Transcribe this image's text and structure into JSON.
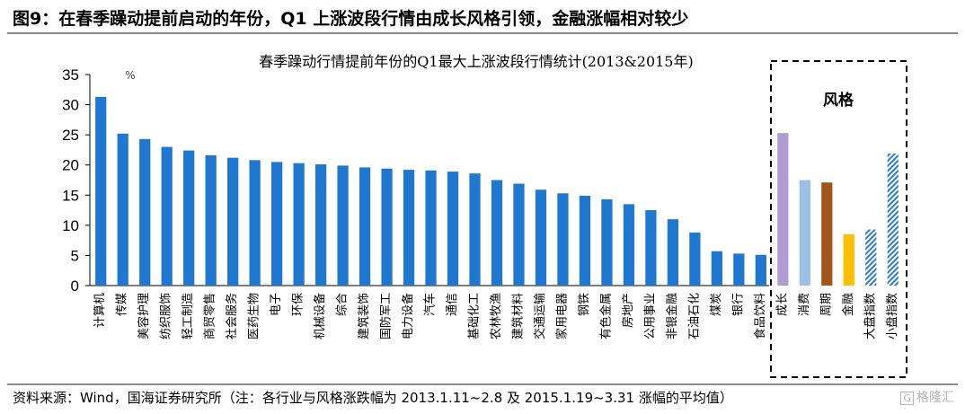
{
  "figure": {
    "title": "图9：在春季躁动提前启动的年份，Q1 上涨波段行情由成长风格引领，金融涨幅相对较少",
    "source": "资料来源：Wind，国海证券研究所（注：各行业与风格涨跌幅为 2013.1.11~2.8 及 2015.1.19~3.31 涨幅的平均值）",
    "watermark": "格隆汇",
    "watermark_icon": "gelonghui-logo-icon"
  },
  "chart_data": {
    "type": "bar",
    "title": "春季躁动行情提前年份的Q1最大上涨波段行情统计(2013&2015年)",
    "y_unit_label": "%",
    "ylim": [
      0,
      35
    ],
    "yticks": [
      0,
      5,
      10,
      15,
      20,
      25,
      30,
      35
    ],
    "grid": false,
    "categories": [
      "计算机",
      "传媒",
      "美容护理",
      "纺织服饰",
      "轻工制造",
      "商贸零售",
      "社会服务",
      "医药生物",
      "电子",
      "环保",
      "机械设备",
      "综合",
      "建筑装饰",
      "国防军工",
      "电力设备",
      "汽车",
      "通信",
      "基础化工",
      "农林牧渔",
      "建筑材料",
      "交通运输",
      "家用电器",
      "钢铁",
      "有色金属",
      "房地产",
      "公用事业",
      "非银金融",
      "石油石化",
      "煤炭",
      "银行",
      "食品饮料",
      "成长",
      "消费",
      "周期",
      "金融",
      "大盘指数",
      "小盘指数"
    ],
    "values": [
      31.3,
      25.2,
      24.3,
      23.0,
      22.4,
      21.6,
      21.2,
      20.8,
      20.5,
      20.3,
      20.1,
      19.9,
      19.6,
      19.4,
      19.2,
      19.1,
      18.9,
      18.6,
      17.5,
      16.9,
      15.9,
      15.3,
      14.9,
      14.3,
      13.5,
      12.5,
      11.0,
      8.8,
      5.7,
      5.3,
      5.1,
      25.3,
      17.5,
      17.1,
      8.5,
      9.3,
      21.9
    ],
    "colors": [
      "#1f77d0",
      "#1f77d0",
      "#1f77d0",
      "#1f77d0",
      "#1f77d0",
      "#1f77d0",
      "#1f77d0",
      "#1f77d0",
      "#1f77d0",
      "#1f77d0",
      "#1f77d0",
      "#1f77d0",
      "#1f77d0",
      "#1f77d0",
      "#1f77d0",
      "#1f77d0",
      "#1f77d0",
      "#1f77d0",
      "#1f77d0",
      "#1f77d0",
      "#1f77d0",
      "#1f77d0",
      "#1f77d0",
      "#1f77d0",
      "#1f77d0",
      "#1f77d0",
      "#1f77d0",
      "#1f77d0",
      "#1f77d0",
      "#1f77d0",
      "#1f77d0",
      "#b19cd2",
      "#9cbfe6",
      "#a1551b",
      "#ffbf00",
      "hatch",
      "hatch"
    ],
    "style_group_label": "风格",
    "style_group_start_index": 31
  }
}
